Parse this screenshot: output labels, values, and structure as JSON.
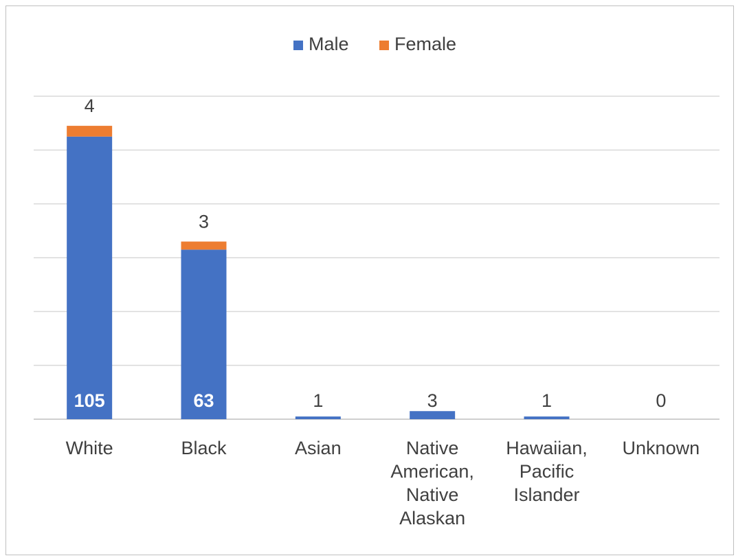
{
  "chart_data": {
    "type": "bar",
    "stacked": true,
    "categories": [
      [
        "White"
      ],
      [
        "Black"
      ],
      [
        "Asian"
      ],
      [
        "Native",
        "American,",
        "Native",
        "Alaskan"
      ],
      [
        "Hawaiian,",
        "Pacific",
        "Islander"
      ],
      [
        "Unknown"
      ]
    ],
    "series": [
      {
        "name": "Male",
        "color": "#4472C4",
        "values": [
          105,
          63,
          1,
          3,
          1,
          0
        ]
      },
      {
        "name": "Female",
        "color": "#ED7D31",
        "values": [
          4,
          3,
          0,
          0,
          0,
          0
        ]
      }
    ],
    "ylim": [
      0,
      120
    ],
    "grid": true,
    "legend": "top-center",
    "y_axis_labels": false
  }
}
